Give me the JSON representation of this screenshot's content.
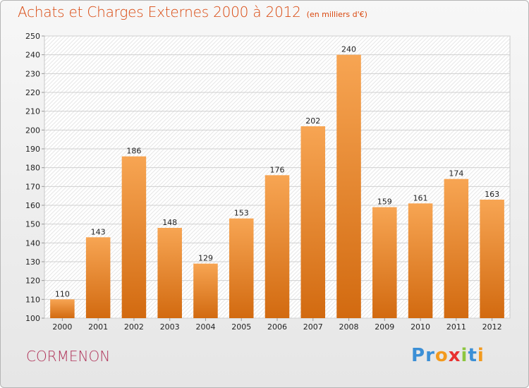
{
  "header": {
    "title": "Achats et Charges Externes 2000 à 2012",
    "unit": "(en milliers d'€)"
  },
  "footer": {
    "commune": "CORMENON",
    "logo_letters": [
      "P",
      "r",
      "o",
      "x",
      "i",
      "t",
      "i"
    ]
  },
  "colors": {
    "bar_top": "#f7a553",
    "bar_bottom": "#d26a10",
    "title": "#d9480f",
    "commune": "#b0345a",
    "logo": [
      "#3b8fd6",
      "#3b8fd6",
      "#f39a1e",
      "#e8302f",
      "#8dc63f",
      "#3b8fd6",
      "#f39a1e"
    ]
  },
  "chart_data": {
    "type": "bar",
    "title": "Achats et Charges Externes 2000 à 2012",
    "subtitle": "(en milliers d'€)",
    "categories": [
      "2000",
      "2001",
      "2002",
      "2003",
      "2004",
      "2005",
      "2006",
      "2007",
      "2008",
      "2009",
      "2010",
      "2011",
      "2012"
    ],
    "values": [
      110,
      143,
      186,
      148,
      129,
      153,
      176,
      202,
      240,
      159,
      161,
      174,
      163
    ],
    "ylim": [
      100,
      250
    ],
    "yticks": [
      100,
      110,
      120,
      130,
      140,
      150,
      160,
      170,
      180,
      190,
      200,
      210,
      220,
      230,
      240,
      250
    ],
    "grid": true,
    "data_labels": true
  }
}
